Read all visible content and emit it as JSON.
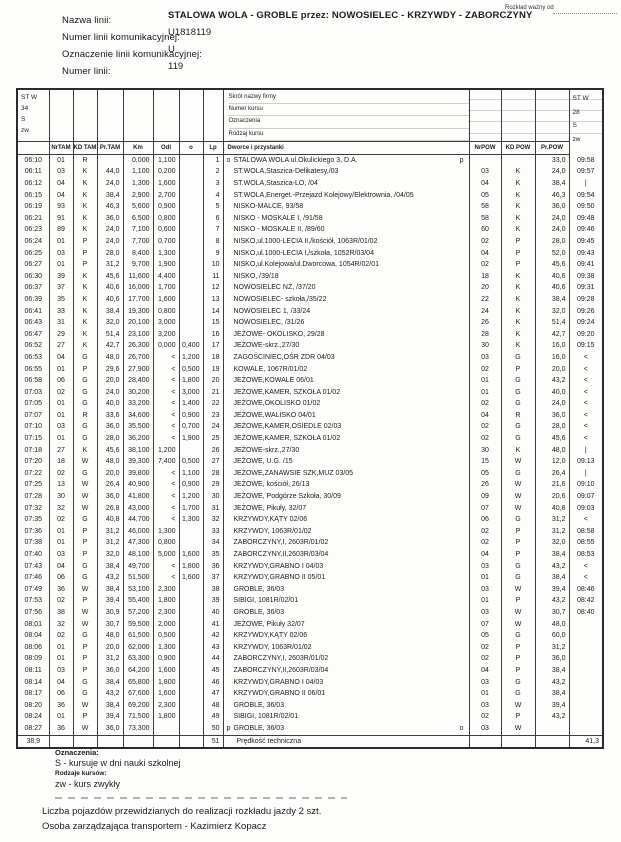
{
  "colors": {
    "paper": "#fdfdfc",
    "ink": "#1c1c1c"
  },
  "header": {
    "valid_from": "Rozkład ważny od",
    "fields": [
      {
        "label": "Nazwa linii:",
        "value": "STALOWA WOLA - GROBLE przez: NOWOSIELEC - KRZYWDY - ZABORCZYNY"
      },
      {
        "label": "Numer linii komunikacyjnej:",
        "value": "U1818119"
      },
      {
        "label": "Oznaczenie linii komunikacyjnej:",
        "value": "U"
      },
      {
        "label": "Numer linii:",
        "value": "119"
      }
    ]
  },
  "table": {
    "left_block": [
      "ST W",
      "34",
      "S",
      "zw"
    ],
    "right_block": [
      "ST W",
      "28",
      "S",
      "zw"
    ],
    "mid_header": [
      "Skrót nazwy firmy",
      "Numer kursu",
      "Oznaczenia",
      "Rodzaj kursu"
    ],
    "columns": [
      "",
      "NrTAM",
      "KD TAM",
      "Pr.TAM",
      "Km",
      "Odl",
      "o",
      "Lp",
      "Dworce i przystanki",
      "NrPOW",
      "KD POW",
      "Pr.POW",
      ""
    ],
    "rows": [
      [
        "06:10",
        "01",
        "R",
        "",
        "0,000",
        "1,100",
        "",
        "1",
        "o",
        "STALOWA WOLA ul.Okulickiego 3, D.A.",
        "p",
        "",
        "",
        "33,0",
        "09:58"
      ],
      [
        "06:11",
        "03",
        "K",
        "44,0",
        "1,100",
        "0,200",
        "",
        "2",
        "",
        "ST.WOLA,Staszica-Delikatesy,/03",
        "",
        "03",
        "K",
        "24,0",
        "09:57"
      ],
      [
        "06:12",
        "04",
        "K",
        "24,0",
        "1,300",
        "1,600",
        "",
        "3",
        "",
        "ST.WOLA,Staszica-LO, /04",
        "",
        "04",
        "K",
        "38,4",
        "|"
      ],
      [
        "06:15",
        "04",
        "K",
        "38,4",
        "2,900",
        "2,700",
        "",
        "4",
        "",
        "ST.WOLA,Energet.-Przejazd Kolejowy/Elektrownia, /04/05",
        "",
        "05",
        "K",
        "46,3",
        "09:54"
      ],
      [
        "06:19",
        "93",
        "K",
        "46,3",
        "5,600",
        "0,900",
        "",
        "5",
        "",
        "NISKO-MALCE, 93/58",
        "",
        "58",
        "K",
        "36,0",
        "09:50"
      ],
      [
        "06:21",
        "91",
        "K",
        "36,0",
        "6,500",
        "0,800",
        "",
        "6",
        "",
        "NISKO - MOSKALE I, /91/58",
        "",
        "58",
        "K",
        "24,0",
        "09:48"
      ],
      [
        "06:23",
        "89",
        "K",
        "24,0",
        "7,100",
        "0,600",
        "",
        "7",
        "",
        "NISKO - MOSKALE II, /89/60",
        "",
        "60",
        "K",
        "24,0",
        "09:46"
      ],
      [
        "06:24",
        "01",
        "P",
        "24,0",
        "7,700",
        "0,700",
        "",
        "8",
        "",
        "NISKO,ul.1000-LECIA II,/kościół, 1063R/01/02",
        "",
        "02",
        "P",
        "28,0",
        "09:45"
      ],
      [
        "06:25",
        "03",
        "P",
        "28,0",
        "8,400",
        "1,300",
        "",
        "9",
        "",
        "NISKO,ul.1000-LECIA I,/szkoła, 1052R/03/04",
        "",
        "04",
        "P",
        "52,0",
        "09:43"
      ],
      [
        "06:27",
        "01",
        "P",
        "31,2",
        "9,700",
        "1,900",
        "",
        "10",
        "",
        "NISKO,ul.Kolejowa/ul.Dworcowa, 1054R/02/01",
        "",
        "02",
        "P",
        "45,6",
        "09:41"
      ],
      [
        "06:30",
        "39",
        "K",
        "45,6",
        "11,600",
        "4,400",
        "",
        "11",
        "",
        "NISKO, /39/18",
        "",
        "18",
        "K",
        "40,6",
        "09:38"
      ],
      [
        "06:37",
        "37",
        "K",
        "40,6",
        "16,000",
        "1,700",
        "",
        "12",
        "",
        "NOWOSIELEC NŻ, /37/20",
        "",
        "20",
        "K",
        "40,6",
        "09:31"
      ],
      [
        "06:39",
        "35",
        "K",
        "40,6",
        "17,700",
        "1,600",
        "",
        "13",
        "",
        "NOWOSIELEC- szkoła,/35/22",
        "",
        "22",
        "K",
        "38,4",
        "09:28"
      ],
      [
        "06:41",
        "33",
        "K",
        "38,4",
        "19,300",
        "0,800",
        "",
        "14",
        "",
        "NOWOSIELEC 1, /33/24",
        "",
        "24",
        "K",
        "32,0",
        "09:26"
      ],
      [
        "06:43",
        "31",
        "K",
        "32,0",
        "20,100",
        "3,000",
        "",
        "15",
        "",
        "NOWOSIELEC, /31/26",
        "",
        "26",
        "K",
        "51,4",
        "09:24"
      ],
      [
        "06:47",
        "29",
        "K",
        "51,4",
        "23,100",
        "3,200",
        "",
        "16",
        "",
        "JEŻOWE- OKOLISKO, 29/28",
        "",
        "28",
        "K",
        "42,7",
        "09:20"
      ],
      [
        "06:52",
        "27",
        "K",
        "42,7",
        "26,300",
        "0,000",
        "0,400",
        "17",
        "",
        "JEŻOWE-skrz.,27/30",
        "",
        "30",
        "K",
        "16,0",
        "09:15"
      ],
      [
        "06:53",
        "04",
        "G",
        "48,0",
        "26,700",
        "<",
        "1,200",
        "18",
        "",
        "ZAGOŚCINIEC,OŚR ZDR 04/03",
        "",
        "03",
        "G",
        "16,0",
        "<"
      ],
      [
        "06:55",
        "01",
        "P",
        "29,6",
        "27,900",
        "<",
        "0,500",
        "19",
        "",
        "KOWALE, 1067R/01/02",
        "",
        "02",
        "P",
        "20,0",
        "<"
      ],
      [
        "06:58",
        "06",
        "G",
        "20,0",
        "28,400",
        "<",
        "1,800",
        "20",
        "",
        "JEŻOWE,KOWALE 06/01",
        "",
        "01",
        "G",
        "43,2",
        "<"
      ],
      [
        "07:03",
        "02",
        "G",
        "24,0",
        "30,200",
        "<",
        "3,000",
        "21",
        "",
        "JEŻOWE,KAMER, SZKOŁA 01/02",
        "",
        "01",
        "G",
        "40,0",
        "<"
      ],
      [
        "07:05",
        "01",
        "G",
        "40,0",
        "33,200",
        "<",
        "1,400",
        "22",
        "",
        "JEŻOWE,OKOLISKO 01/02",
        "",
        "02",
        "G",
        "24,0",
        "<"
      ],
      [
        "07:07",
        "01",
        "R",
        "33,6",
        "34,600",
        "<",
        "0,900",
        "23",
        "",
        "JEŻOWE,WALISKO 04/01",
        "",
        "04",
        "R",
        "36,0",
        "<"
      ],
      [
        "07:10",
        "03",
        "G",
        "36,0",
        "35,500",
        "<",
        "0,700",
        "24",
        "",
        "JEŻOWE,KAMER,OSIEDLE 02/03",
        "",
        "02",
        "G",
        "28,0",
        "<"
      ],
      [
        "07:15",
        "01",
        "G",
        "28,0",
        "36,200",
        "<",
        "1,900",
        "25",
        "",
        "JEŻOWE,KAMER, SZKOŁA 01/02",
        "",
        "02",
        "G",
        "45,6",
        "<"
      ],
      [
        "07:18",
        "27",
        "K",
        "45,6",
        "38,100",
        "1,200",
        "",
        "26",
        "",
        "JEŻOWE-skrz.,27/30",
        "",
        "30",
        "K",
        "48,0",
        "|"
      ],
      [
        "07:20",
        "18",
        "W",
        "48,0",
        "39,300",
        "7,400",
        "0,500",
        "27",
        "",
        "JEŻOWE, U.G. /15",
        "",
        "15",
        "W",
        "12,0",
        "09:13"
      ],
      [
        "07:22",
        "02",
        "G",
        "20,0",
        "39,800",
        "<",
        "1,100",
        "28",
        "",
        "JEŻOWE,ZANAWSIE SZK,MUZ 03/05",
        "",
        "05",
        "G",
        "26,4",
        "|"
      ],
      [
        "07:25",
        "13",
        "W",
        "26,4",
        "40,900",
        "<",
        "0,900",
        "29",
        "",
        "JEŻOWE, kościół, 26/13",
        "",
        "26",
        "W",
        "21,6",
        "09:10"
      ],
      [
        "07:28",
        "30",
        "W",
        "36,0",
        "41,800",
        "<",
        "1,200",
        "30",
        "",
        "JEŻOWE, Podgórze Szkoła, 30/09",
        "",
        "09",
        "W",
        "20,6",
        "09:07"
      ],
      [
        "07:32",
        "32",
        "W",
        "26,8",
        "43,000",
        "<",
        "1,700",
        "31",
        "",
        "JEŻOWE, Pikuły, 32/07",
        "",
        "07",
        "W",
        "40,8",
        "09:03"
      ],
      [
        "07:35",
        "02",
        "G",
        "40,8",
        "44,700",
        "<",
        "1,300",
        "32",
        "",
        "KRZYWDY,KĄTY 02/06",
        "",
        "06",
        "G",
        "31,2",
        "<"
      ],
      [
        "07:36",
        "01",
        "P",
        "31,2",
        "46,000",
        "1,300",
        "",
        "33",
        "",
        "KRZYWDY, 1063R/01/02",
        "",
        "02",
        "P",
        "31,2",
        "08:58"
      ],
      [
        "07:38",
        "01",
        "P",
        "31,2",
        "47,300",
        "0,800",
        "",
        "34",
        "",
        "ZABORCZYNY,I, 2603R/01/02",
        "",
        "02",
        "P",
        "32,0",
        "08:55"
      ],
      [
        "07:40",
        "03",
        "P",
        "32,0",
        "48,100",
        "5,000",
        "1,600",
        "35",
        "",
        "ZABORCZYNY,II,2603R/03/04",
        "",
        "04",
        "P",
        "38,4",
        "08:53"
      ],
      [
        "07:43",
        "04",
        "G",
        "38,4",
        "49,700",
        "<",
        "1,800",
        "36",
        "",
        "KRZYWDY,GRABNO I 04/03",
        "",
        "03",
        "G",
        "43,2",
        "<"
      ],
      [
        "07:46",
        "06",
        "G",
        "43,2",
        "51,500",
        "<",
        "1,600",
        "37",
        "",
        "KRZYWDY,GRABNO II 05/01",
        "",
        "01",
        "G",
        "38,4",
        "<"
      ],
      [
        "07:49",
        "36",
        "W",
        "38,4",
        "53,100",
        "2,300",
        "",
        "38",
        "",
        "GROBLE, 36/03",
        "",
        "03",
        "W",
        "39,4",
        "08:46"
      ],
      [
        "07:53",
        "02",
        "P",
        "39,4",
        "55,400",
        "1,800",
        "",
        "39",
        "",
        "SIBIGI, 1081R/02/01",
        "",
        "01",
        "P",
        "43,2",
        "08:42"
      ],
      [
        "07:56",
        "38",
        "W",
        "30,9",
        "57,200",
        "2,300",
        "",
        "40",
        "",
        "GROBLE, 36/03",
        "",
        "03",
        "W",
        "30,7",
        "08:40"
      ],
      [
        "08:01",
        "32",
        "W",
        "30,7",
        "59,500",
        "2,000",
        "",
        "41",
        "",
        "JEŻOWE, Pikuły 32/07",
        "",
        "07",
        "W",
        "48,0",
        ""
      ],
      [
        "08:04",
        "02",
        "G",
        "48,0",
        "61,500",
        "0,500",
        "",
        "42",
        "",
        "KRZYWDY,KĄTY 02/06",
        "",
        "05",
        "G",
        "60,0",
        ""
      ],
      [
        "08:06",
        "01",
        "P",
        "20,0",
        "62,000",
        "1,300",
        "",
        "43",
        "",
        "KRZYWDY, 1063R/01/02",
        "",
        "02",
        "P",
        "31,2",
        ""
      ],
      [
        "08:09",
        "01",
        "P",
        "31,2",
        "63,300",
        "0,900",
        "",
        "44",
        "",
        "ZABORCZYNY,I, 2603R/01/02",
        "",
        "02",
        "P",
        "36,0",
        ""
      ],
      [
        "08:11",
        "03",
        "P",
        "36,0",
        "64,200",
        "1,600",
        "",
        "45",
        "",
        "ZABORCZYNY,II,2603R/03/04",
        "",
        "04",
        "P",
        "38,4",
        ""
      ],
      [
        "08:14",
        "04",
        "G",
        "38,4",
        "65,800",
        "1,800",
        "",
        "46",
        "",
        "KRZYWDY,GRABNO I 04/03",
        "",
        "03",
        "G",
        "43,2",
        ""
      ],
      [
        "08:17",
        "06",
        "G",
        "43,2",
        "67,600",
        "1,600",
        "",
        "47",
        "",
        "KRZYWDY,GRABNO II 06/01",
        "",
        "01",
        "G",
        "38,4",
        ""
      ],
      [
        "08:20",
        "36",
        "W",
        "38,4",
        "69,200",
        "2,300",
        "",
        "48",
        "",
        "GROBLE, 36/03",
        "",
        "03",
        "W",
        "39,4",
        ""
      ],
      [
        "08:24",
        "01",
        "P",
        "39,4",
        "71,500",
        "1,800",
        "",
        "49",
        "",
        "SIBIGI, 1081R/02/01",
        "",
        "02",
        "P",
        "43,2",
        ""
      ],
      [
        "08:27",
        "36",
        "W",
        "36,0",
        "73,300",
        "",
        "",
        "50",
        "p",
        "GROBLE, 36/03",
        "o",
        "03",
        "W",
        "",
        ""
      ]
    ],
    "summary_row": {
      "left": "38,9",
      "lp": "51",
      "name": "Prędkość techniczna",
      "right": "41,3"
    }
  },
  "footer": {
    "legend_title": "Oznaczenia:",
    "legend_s": "S - kursuje w dni nauki szkolnej",
    "course_types_title": "Rodzaje kursów:",
    "course_zw": "zw - kurs zwykły",
    "vehicles_note": "Liczba pojazdów przewidzianych do realizacji rozkładu jazdy 2 szt.",
    "manager_note": "Osoba zarządzająca transportem - Kazimierz Kopacz"
  }
}
